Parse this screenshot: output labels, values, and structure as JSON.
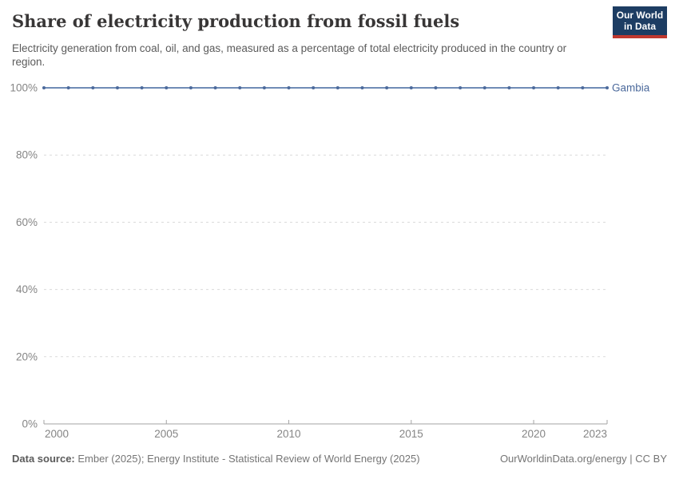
{
  "header": {
    "title": "Share of electricity production from fossil fuels",
    "subtitle": "Electricity generation from coal, oil, and gas, measured as a percentage of total electricity produced in the country or region.",
    "logo": {
      "line1": "Our World",
      "line2": "in Data"
    }
  },
  "chart_data": {
    "type": "line",
    "title": "Share of electricity production from fossil fuels",
    "xlabel": "",
    "ylabel": "",
    "xlim": [
      2000,
      2023
    ],
    "ylim": [
      0,
      100
    ],
    "grid": "horizontal-dashed",
    "legend_position": "right-of-line-end",
    "x_ticks": [
      2000,
      2005,
      2010,
      2015,
      2020,
      2023
    ],
    "y_ticks": [
      0,
      20,
      40,
      60,
      80,
      100
    ],
    "y_tick_suffix": "%",
    "series": [
      {
        "name": "Gambia",
        "color": "#4c6a9c",
        "x": [
          2000,
          2001,
          2002,
          2003,
          2004,
          2005,
          2006,
          2007,
          2008,
          2009,
          2010,
          2011,
          2012,
          2013,
          2014,
          2015,
          2016,
          2017,
          2018,
          2019,
          2020,
          2021,
          2022,
          2023
        ],
        "values": [
          100,
          100,
          100,
          100,
          100,
          100,
          100,
          100,
          100,
          100,
          100,
          100,
          100,
          100,
          100,
          100,
          100,
          100,
          100,
          100,
          100,
          100,
          100,
          100
        ]
      }
    ]
  },
  "footer": {
    "source_label": "Data source:",
    "source_text": " Ember (2025); Energy Institute - Statistical Review of World Energy (2025)",
    "credit": "OurWorldinData.org/energy | CC BY"
  },
  "colors": {
    "accent_navy": "#1d3d63",
    "accent_red": "#c0382f",
    "line_stroke": "#5b7cab",
    "point_fill": "#4c6a9c",
    "series_label": "#4c6a9c",
    "gridline": "#dadada",
    "axis_line": "#a3a3a3",
    "tick_text": "#858585",
    "title_text": "#383636",
    "subtitle_text": "#5b5b5b"
  }
}
